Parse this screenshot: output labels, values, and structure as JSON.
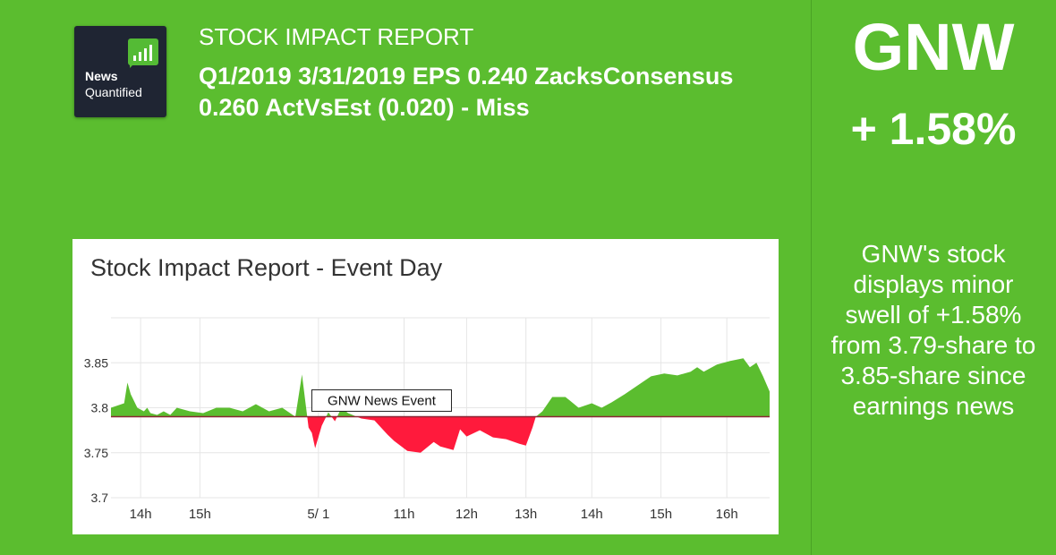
{
  "logo": {
    "line1": "News",
    "line2": "Quantified"
  },
  "header": {
    "report_title": "STOCK IMPACT REPORT",
    "eps_text": "Q1/2019 3/31/2019 EPS 0.240 ZacksConsensus 0.260 ActVsEst (0.020) - Miss"
  },
  "side": {
    "ticker": "GNW",
    "change": "+ 1.58%",
    "summary": "GNW's stock displays minor swell of +1.58% from 3.79-share to 3.85-share since earnings news"
  },
  "colors": {
    "background": "#5bbd2f",
    "up": "#5bbd2f",
    "down": "#ff1a3c",
    "baseline": "#8b2635"
  },
  "chart_data": {
    "type": "area",
    "title": "Stock Impact Report - Event Day",
    "xlabel": "",
    "ylabel": "",
    "ylim": [
      3.7,
      3.9
    ],
    "yticks": [
      3.7,
      3.75,
      3.8,
      3.85
    ],
    "ytick_labels": [
      "3.7",
      "3.75",
      "3.8",
      "3.85"
    ],
    "xlim": [
      0,
      10
    ],
    "xticks": [
      0.45,
      1.35,
      3.15,
      4.45,
      5.4,
      6.3,
      7.3,
      8.35,
      9.35
    ],
    "xtick_labels": [
      "14h",
      "15h",
      "5/ 1",
      "11h",
      "12h",
      "13h",
      "14h",
      "15h",
      "16h"
    ],
    "baseline": 3.79,
    "annotation": {
      "label": "GNW News Event",
      "x": 3.05,
      "y": 3.808
    },
    "x": [
      0,
      0.2,
      0.25,
      0.3,
      0.4,
      0.5,
      0.55,
      0.6,
      0.7,
      0.8,
      0.9,
      1.0,
      1.2,
      1.4,
      1.6,
      1.8,
      2.0,
      2.2,
      2.4,
      2.6,
      2.8,
      2.9,
      3.0,
      3.05,
      3.1,
      3.2,
      3.3,
      3.4,
      3.5,
      3.6,
      3.8,
      4.0,
      4.1,
      4.2,
      4.3,
      4.5,
      4.7,
      4.9,
      5.0,
      5.2,
      5.3,
      5.4,
      5.6,
      5.8,
      6.0,
      6.2,
      6.3,
      6.4,
      6.45,
      6.55,
      6.7,
      6.9,
      7.1,
      7.3,
      7.45,
      7.6,
      7.8,
      8.0,
      8.2,
      8.4,
      8.6,
      8.8,
      8.9,
      9.0,
      9.2,
      9.4,
      9.6,
      9.7,
      9.8,
      9.9,
      10.0
    ],
    "values": [
      3.8,
      3.805,
      3.828,
      3.815,
      3.8,
      3.796,
      3.8,
      3.794,
      3.792,
      3.796,
      3.792,
      3.8,
      3.796,
      3.794,
      3.8,
      3.8,
      3.796,
      3.804,
      3.796,
      3.8,
      3.79,
      3.837,
      3.778,
      3.772,
      3.755,
      3.78,
      3.795,
      3.785,
      3.8,
      3.794,
      3.788,
      3.786,
      3.778,
      3.77,
      3.763,
      3.752,
      3.75,
      3.762,
      3.757,
      3.753,
      3.776,
      3.768,
      3.775,
      3.767,
      3.765,
      3.76,
      3.758,
      3.778,
      3.79,
      3.796,
      3.812,
      3.812,
      3.8,
      3.805,
      3.8,
      3.806,
      3.815,
      3.825,
      3.835,
      3.838,
      3.836,
      3.84,
      3.845,
      3.84,
      3.848,
      3.852,
      3.855,
      3.845,
      3.85,
      3.835,
      3.818
    ]
  }
}
